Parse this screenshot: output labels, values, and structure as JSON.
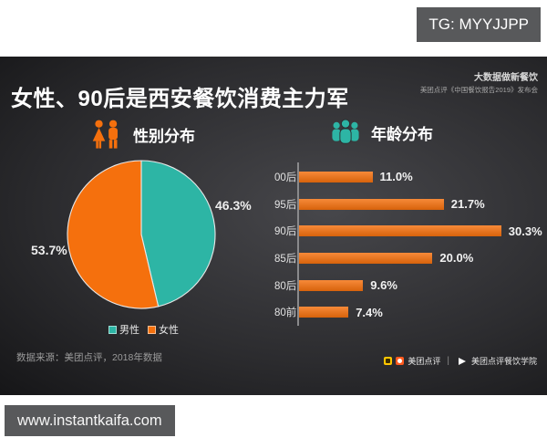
{
  "page": {
    "tg_badge": "TG: MYYJJPP",
    "site_badge": "www.instantkaifa.com"
  },
  "infographic": {
    "title": "女性、90后是西安餐饮消费主力军",
    "source_line1": "大数据做新餐饮",
    "source_line2": "美团点评《中国餐饮报告2019》发布会",
    "gender_heading": "性别分布",
    "age_heading": "年龄分布",
    "data_source_note": "数据来源：美团点评，2018年数据",
    "brand_left": "美团点评",
    "brand_divider": "|",
    "brand_right": "美团点评餐饮学院"
  },
  "colors": {
    "teal": "#2db5a5",
    "orange": "#f5700d",
    "badge_bg": "#58595b",
    "axis": "#8a8a8c"
  },
  "chart_data": [
    {
      "type": "pie",
      "title": "性别分布",
      "labels": [
        "男性",
        "女性"
      ],
      "values": [
        46.3,
        53.7
      ],
      "value_labels": [
        "46.3%",
        "53.7%"
      ],
      "colors": [
        "#2db5a5",
        "#f5700d"
      ],
      "start_angle_deg": 0,
      "direction": "clockwise",
      "legend_position": "bottom"
    },
    {
      "type": "bar",
      "title": "年龄分布",
      "orientation": "horizontal",
      "categories": [
        "00后",
        "95后",
        "90后",
        "85后",
        "80后",
        "80前"
      ],
      "values": [
        11.0,
        21.7,
        30.3,
        20.0,
        9.6,
        7.4
      ],
      "value_labels": [
        "11.0%",
        "21.7%",
        "30.3%",
        "20.0%",
        "9.6%",
        "7.4%"
      ],
      "color": "#f5700d",
      "xlim": [
        0,
        33.2
      ],
      "grid": false
    }
  ]
}
